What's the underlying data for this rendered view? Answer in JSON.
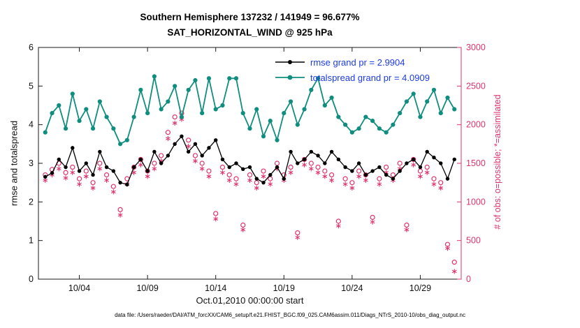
{
  "footer": "data file: /Users/raeder/DAI/ATM_forcXX/CAM6_setup/f.e21.FHIST_BGC.f09_025.CAM6assim.011/Diags_NTrS_2010-10/obs_diag_output.nc",
  "colors": {
    "legend_text": "#1b3be8",
    "axis_box": "#1a1a1a"
  },
  "chart_data": {
    "type": "line",
    "title": "Southern Hemisphere 137232 / 141949 = 96.677%",
    "subtitle": "SAT_HORIZONTAL_WIND @ 925 hPa",
    "grid": false,
    "legend_position": "top-center-inside",
    "stats": {
      "rmse_grand_pr": 2.9904,
      "totalspread_grand_pr": 4.0909
    },
    "x_axis": {
      "label": "Oct.01,2010 00:00:00 start",
      "range": [
        0,
        31
      ],
      "tick_days": [
        3,
        8,
        13,
        18,
        23,
        28
      ],
      "tick_labels": [
        "10/04",
        "10/09",
        "10/14",
        "10/19",
        "10/24",
        "10/29"
      ]
    },
    "left_axis": {
      "label": "rmse and totalspread",
      "range": [
        0,
        6
      ],
      "ticks": [
        0,
        1,
        2,
        3,
        4,
        5,
        6
      ]
    },
    "right_axis": {
      "label": "# of obs: o=possible; *=assimilated",
      "range": [
        0,
        3000
      ],
      "ticks": [
        0,
        500,
        1000,
        1500,
        2000,
        2500,
        3000
      ],
      "color": "#e0336e"
    },
    "x_days": [
      0.5,
      1,
      1.5,
      2,
      2.5,
      3,
      3.5,
      4,
      4.5,
      5,
      5.5,
      6,
      6.5,
      7,
      7.5,
      8,
      8.5,
      9,
      9.5,
      10,
      10.5,
      11,
      11.5,
      12,
      12.5,
      13,
      13.5,
      14,
      14.5,
      15,
      15.5,
      16,
      16.5,
      17,
      17.5,
      18,
      18.5,
      19,
      19.5,
      20,
      20.5,
      21,
      21.5,
      22,
      22.5,
      23,
      23.5,
      24,
      24.5,
      25,
      25.5,
      26,
      26.5,
      27,
      27.5,
      28,
      28.5,
      29,
      29.5,
      30,
      30.5
    ],
    "series": [
      {
        "name": "rmse",
        "legend": "rmse grand pr = 2.9904",
        "axis": "left",
        "color": "#000000",
        "marker": "filled-circle",
        "line": true,
        "values": [
          2.65,
          2.75,
          3.1,
          2.9,
          3.4,
          2.8,
          3.0,
          2.7,
          3.3,
          2.9,
          2.8,
          2.5,
          2.45,
          2.9,
          3.1,
          2.8,
          3.3,
          3.0,
          3.2,
          3.5,
          3.7,
          3.3,
          3.5,
          3.2,
          3.4,
          3.6,
          3.1,
          2.9,
          3.0,
          2.85,
          2.9,
          2.6,
          2.5,
          2.7,
          2.9,
          2.6,
          3.3,
          3.0,
          3.1,
          3.3,
          3.2,
          3.0,
          3.3,
          3.1,
          2.9,
          2.8,
          3.0,
          2.7,
          2.8,
          2.9,
          2.7,
          2.6,
          2.8,
          3.0,
          3.1,
          2.9,
          3.3,
          3.15,
          3.0,
          2.6,
          3.1
        ]
      },
      {
        "name": "totalspread",
        "legend": "totalspread grand pr = 4.0909",
        "axis": "left",
        "color": "#0f8e7f",
        "marker": "filled-circle",
        "line": true,
        "values": [
          3.8,
          4.3,
          4.5,
          3.9,
          4.8,
          4.1,
          4.4,
          3.9,
          4.6,
          4.2,
          3.9,
          3.5,
          3.6,
          4.2,
          4.9,
          4.3,
          5.25,
          4.4,
          4.6,
          5.0,
          4.2,
          4.9,
          5.15,
          4.3,
          5.2,
          4.4,
          4.5,
          5.2,
          5.2,
          4.3,
          3.9,
          4.4,
          3.7,
          4.1,
          3.6,
          4.3,
          4.6,
          4.0,
          4.4,
          4.9,
          5.2,
          4.5,
          4.7,
          4.2,
          4.0,
          3.8,
          3.9,
          4.2,
          4.1,
          3.9,
          3.8,
          4.0,
          4.3,
          4.6,
          4.8,
          4.2,
          4.6,
          4.9,
          4.3,
          4.7,
          4.4
        ]
      },
      {
        "name": "possible-obs",
        "legend": "o = possible",
        "axis": "right",
        "color": "#e0336e",
        "marker": "open-circle",
        "line": false,
        "values": [
          1350,
          1420,
          1500,
          1380,
          1450,
          1300,
          1400,
          1250,
          1500,
          1350,
          1200,
          900,
          1300,
          1450,
          1550,
          1400,
          1500,
          1600,
          1900,
          2100,
          2150,
          1800,
          1600,
          1500,
          1400,
          850,
          1450,
          1350,
          1300,
          700,
          1350,
          1250,
          1400,
          1300,
          1500,
          1350,
          1450,
          600,
          1550,
          1500,
          1450,
          1400,
          1350,
          750,
          1300,
          1250,
          1400,
          1350,
          800,
          1300,
          1450,
          1350,
          1500,
          700,
          1550,
          1400,
          1450,
          1300,
          1250,
          450,
          220
        ]
      },
      {
        "name": "assimilated-obs",
        "legend": "* = assimilated",
        "axis": "right",
        "color": "#e0336e",
        "marker": "asterisk",
        "line": false,
        "values": [
          1280,
          1350,
          1430,
          1310,
          1380,
          1230,
          1330,
          1180,
          1430,
          1280,
          1130,
          830,
          1230,
          1380,
          1480,
          1330,
          1430,
          1530,
          1820,
          2020,
          2070,
          1720,
          1530,
          1430,
          1330,
          780,
          1380,
          1280,
          1230,
          640,
          1280,
          1180,
          1330,
          1230,
          1430,
          1280,
          1380,
          540,
          1480,
          1430,
          1380,
          1330,
          1280,
          690,
          1230,
          1180,
          1330,
          1280,
          740,
          1230,
          1380,
          1280,
          1430,
          640,
          1480,
          1330,
          1380,
          1230,
          1180,
          400,
          100
        ]
      }
    ]
  }
}
